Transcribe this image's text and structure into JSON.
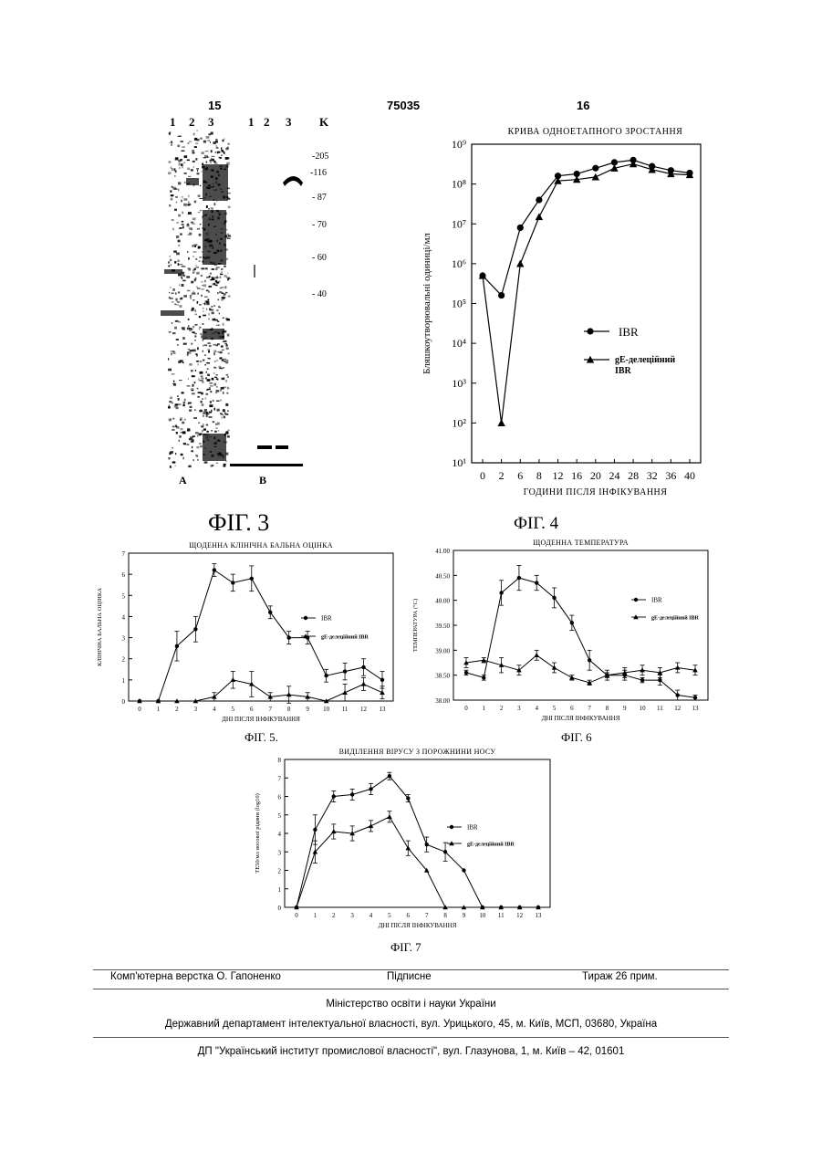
{
  "header": {
    "left_page": "15",
    "center": "75035",
    "right_page": "16"
  },
  "fig3": {
    "caption": "ФІГ. 3",
    "lanes_a": [
      "1",
      "2",
      "3"
    ],
    "lanes_b": [
      "1",
      "2",
      "3"
    ],
    "marker_head": "K",
    "markers": [
      "-205",
      "-116",
      "- 87",
      "- 70",
      "- 60",
      "- 40"
    ],
    "panel_a": "A",
    "panel_b": "B"
  },
  "fig4": {
    "caption": "ФІГ. 4",
    "chart_data": {
      "type": "line",
      "title": "КРИВА ОДНОЕТАПНОГО ЗРОСТАННЯ",
      "xlabel": "ГОДИНИ ПІСЛЯ ІНФІКУВАННЯ",
      "ylabel": "Бляшкоутворювальні одиниці/мл",
      "yscale": "log",
      "ylim": [
        10,
        1000000000
      ],
      "x_ticks": [
        "0",
        "2",
        "6",
        "8",
        "12",
        "16",
        "20",
        "24",
        "28",
        "32",
        "36",
        "40"
      ],
      "y_ticks": [
        "10¹",
        "10²",
        "10³",
        "10⁴",
        "10⁵",
        "10⁶",
        "10⁷",
        "10⁸",
        "10⁹"
      ],
      "legend_position": "right-center",
      "series": [
        {
          "name": "IBR",
          "marker": "circle",
          "values": [
            500000,
            160000,
            8000000,
            40000000,
            160000000,
            180000000,
            250000000,
            350000000,
            400000000,
            280000000,
            220000000,
            190000000
          ]
        },
        {
          "name": "gE-делеційний IBR",
          "marker": "triangle",
          "values": [
            500000,
            100,
            1000000,
            15000000,
            120000000,
            130000000,
            150000000,
            250000000,
            320000000,
            230000000,
            180000000,
            170000000
          ]
        }
      ]
    }
  },
  "fig5": {
    "caption": "ФІГ. 5.",
    "chart_data": {
      "type": "line",
      "title": "ЩОДЕННА КЛІНІЧНА БАЛЬНА ОЦІНКА",
      "xlabel": "ДНІ ПІСЛЯ ІНФІКУВАННЯ",
      "ylabel": "КЛІНІЧНА БАЛЬНА ОЦІНКА",
      "ylim": [
        0,
        7
      ],
      "x": [
        0,
        1,
        2,
        3,
        4,
        5,
        6,
        7,
        8,
        9,
        10,
        11,
        12,
        13
      ],
      "y_ticks": [
        "0",
        "1",
        "2",
        "3",
        "4",
        "5",
        "6",
        "7"
      ],
      "legend_position": "right-center",
      "series": [
        {
          "name": "IBR",
          "marker": "circle",
          "values": [
            0,
            0,
            2.6,
            3.4,
            6.2,
            5.6,
            5.8,
            4.2,
            3.0,
            3.0,
            1.2,
            1.4,
            1.6,
            1.0
          ],
          "errors": [
            0,
            0,
            0.7,
            0.6,
            0.3,
            0.4,
            0.6,
            0.3,
            0.3,
            0.3,
            0.3,
            0.4,
            0.4,
            0.4
          ]
        },
        {
          "name": "gE-делеційний IBR",
          "marker": "triangle",
          "values": [
            0,
            0,
            0,
            0,
            0.2,
            1.0,
            0.8,
            0.2,
            0.3,
            0.2,
            0,
            0.4,
            0.8,
            0.4
          ],
          "errors": [
            0,
            0,
            0,
            0,
            0.2,
            0.4,
            0.6,
            0.2,
            0.4,
            0.2,
            0,
            0.4,
            0.3,
            0.3
          ]
        }
      ]
    }
  },
  "fig6": {
    "caption": "ФІГ. 6",
    "chart_data": {
      "type": "line",
      "title": "ЩОДЕННА ТЕМПЕРАТУРА",
      "xlabel": "ДНІ ПІСЛЯ ІНФІКУВАННЯ",
      "ylabel": "ТЕМПЕРАТУРА (°C)",
      "ylim": [
        38.0,
        41.0
      ],
      "x": [
        0,
        1,
        2,
        3,
        4,
        5,
        6,
        7,
        8,
        9,
        10,
        11,
        12,
        13
      ],
      "y_ticks": [
        "38.00",
        "38.50",
        "39.00",
        "39.50",
        "40.00",
        "40.50",
        "41.00"
      ],
      "legend_position": "right-center",
      "series": [
        {
          "name": "IBR",
          "marker": "circle",
          "values": [
            38.55,
            38.45,
            40.15,
            40.45,
            40.35,
            40.05,
            39.55,
            38.8,
            38.5,
            38.5,
            38.4,
            38.4,
            38.1,
            38.05
          ],
          "errors": [
            0.05,
            0.05,
            0.25,
            0.25,
            0.15,
            0.2,
            0.15,
            0.2,
            0.1,
            0.1,
            0.05,
            0.1,
            0.1,
            0.05
          ]
        },
        {
          "name": "gE-делеційний IBR",
          "marker": "triangle",
          "values": [
            38.75,
            38.8,
            38.7,
            38.6,
            38.9,
            38.65,
            38.45,
            38.35,
            38.5,
            38.55,
            38.6,
            38.55,
            38.65,
            38.6
          ],
          "errors": [
            0.1,
            0.05,
            0.15,
            0.1,
            0.1,
            0.1,
            0.05,
            0.05,
            0.05,
            0.1,
            0.1,
            0.1,
            0.1,
            0.1
          ]
        }
      ]
    }
  },
  "fig7": {
    "caption": "ФІГ. 7",
    "chart_data": {
      "type": "line",
      "title": "ВИДІЛЕННЯ ВІРУСУ З ПОРОЖНИНИ НОСУ",
      "xlabel": "ДНІ ПІСЛЯ ІНФІКУВАННЯ",
      "ylabel": "ТЕ50/мл носової рідини (log10)",
      "ylim": [
        0,
        8
      ],
      "x": [
        0,
        1,
        2,
        3,
        4,
        5,
        6,
        7,
        8,
        9,
        10,
        11,
        12,
        13
      ],
      "y_ticks": [
        "0",
        "1",
        "2",
        "3",
        "4",
        "5",
        "6",
        "7",
        "8"
      ],
      "legend_position": "right-center",
      "series": [
        {
          "name": "IBR",
          "marker": "circle",
          "values": [
            0,
            4.2,
            6.0,
            6.1,
            6.4,
            7.1,
            5.9,
            3.4,
            3.0,
            2.0,
            0,
            0,
            0,
            0
          ],
          "errors": [
            0,
            0.8,
            0.3,
            0.3,
            0.3,
            0.2,
            0.2,
            0.4,
            0.5,
            0,
            0,
            0,
            0,
            0
          ]
        },
        {
          "name": "gE-делеційний IBR",
          "marker": "triangle",
          "values": [
            0,
            3.0,
            4.1,
            4.0,
            4.4,
            4.9,
            3.2,
            2.0,
            0,
            0,
            0,
            0,
            0,
            0
          ],
          "errors": [
            0,
            0.6,
            0.4,
            0.4,
            0.3,
            0.3,
            0.4,
            0,
            0,
            0,
            0,
            0,
            0,
            0
          ]
        }
      ]
    }
  },
  "footer": {
    "layout_by": "Комп'ютерна верстка О. Гапоненко",
    "signed": "Підписне",
    "circulation": "Тираж 26 прим.",
    "ministry": "Міністерство освіти і науки України",
    "department": "Державний департамент інтелектуальної власності, вул. Урицького, 45, м. Київ, МСП, 03680, Україна",
    "institute": "ДП \"Український інститут промислової власності\", вул. Глазунова, 1, м. Київ – 42, 01601"
  }
}
